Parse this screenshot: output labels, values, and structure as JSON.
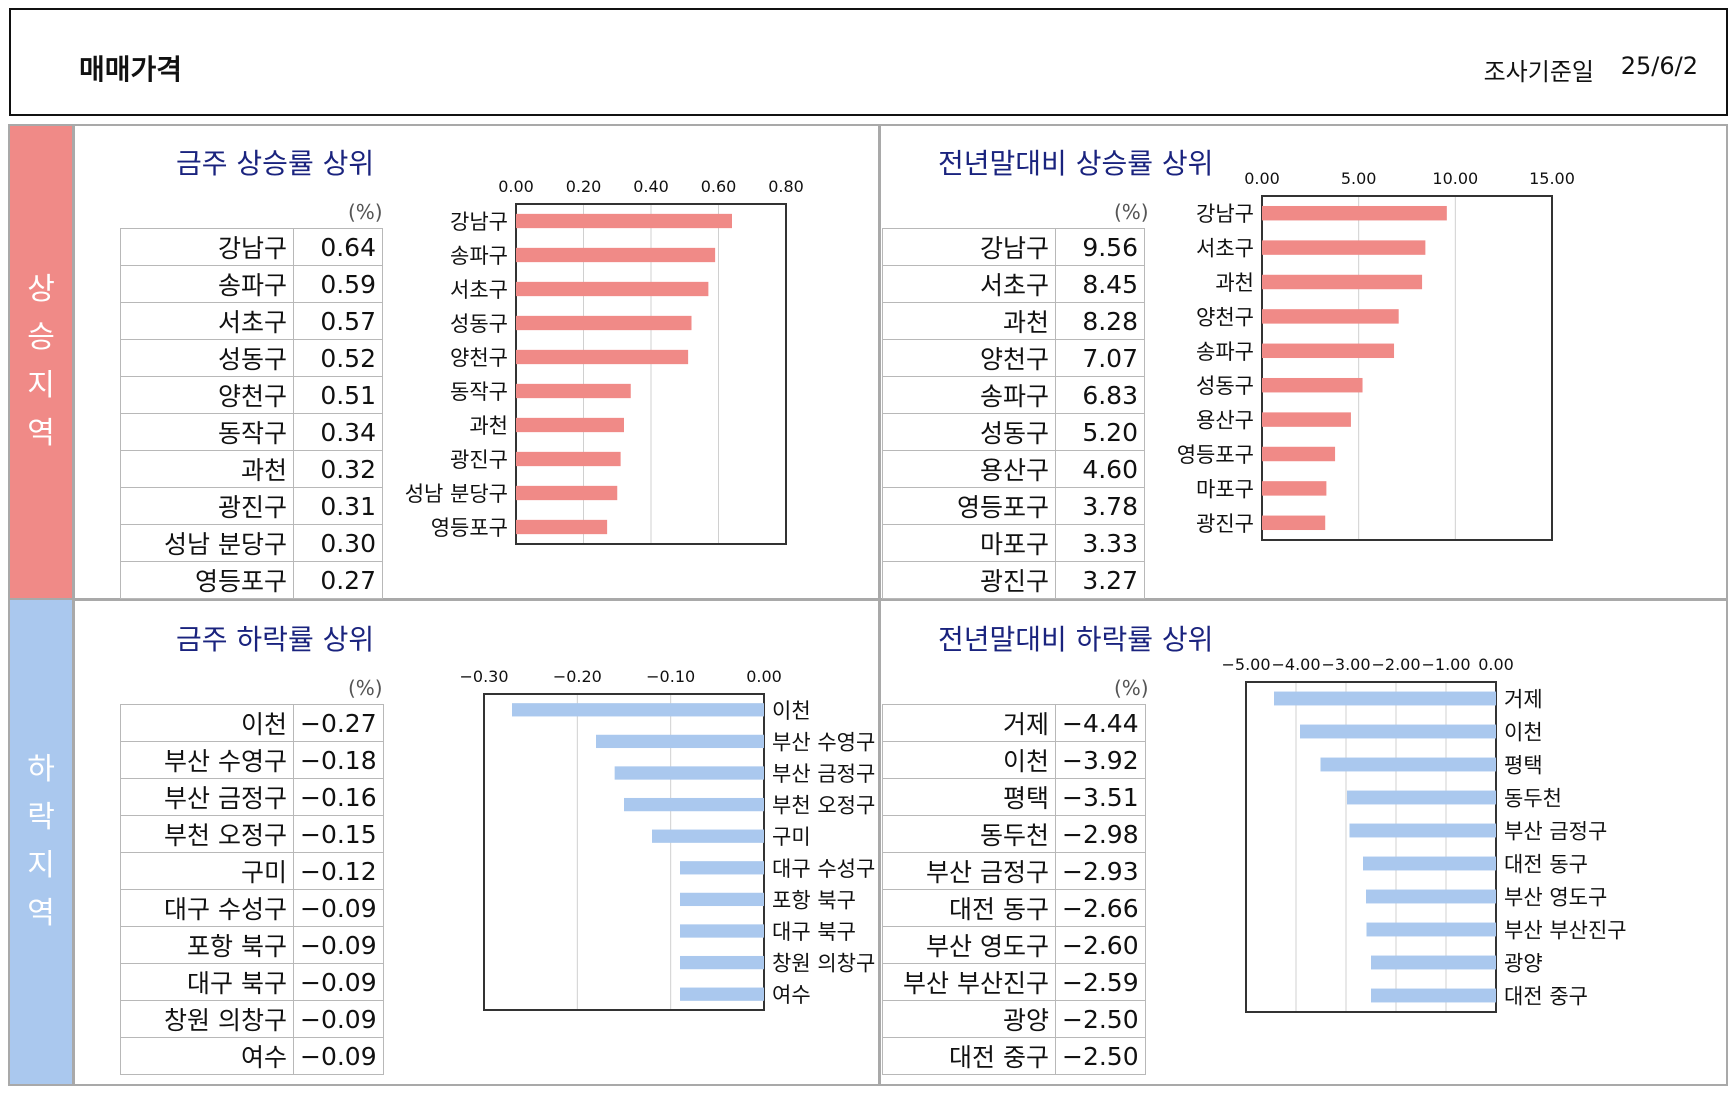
{
  "header": {
    "title": "매매가격",
    "date_label": "조사기준일",
    "date_value": "25/6/2"
  },
  "side": {
    "up": [
      "상",
      "승",
      "지",
      "역"
    ],
    "down": [
      "하",
      "락",
      "지",
      "역"
    ]
  },
  "unit_label": "(%)",
  "panels": {
    "weekly_up": {
      "title": "금주 상승률 상위",
      "rows": [
        {
          "name": "강남구",
          "value": "0.64"
        },
        {
          "name": "송파구",
          "value": "0.59"
        },
        {
          "name": "서초구",
          "value": "0.57"
        },
        {
          "name": "성동구",
          "value": "0.52"
        },
        {
          "name": "양천구",
          "value": "0.51"
        },
        {
          "name": "동작구",
          "value": "0.34"
        },
        {
          "name": "과천",
          "value": "0.32"
        },
        {
          "name": "광진구",
          "value": "0.31"
        },
        {
          "name": "성남 분당구",
          "value": "0.30"
        },
        {
          "name": "영등포구",
          "value": "0.27"
        }
      ]
    },
    "ytd_up": {
      "title": "전년말대비 상승률 상위",
      "rows": [
        {
          "name": "강남구",
          "value": "9.56"
        },
        {
          "name": "서초구",
          "value": "8.45"
        },
        {
          "name": "과천",
          "value": "8.28"
        },
        {
          "name": "양천구",
          "value": "7.07"
        },
        {
          "name": "송파구",
          "value": "6.83"
        },
        {
          "name": "성동구",
          "value": "5.20"
        },
        {
          "name": "용산구",
          "value": "4.60"
        },
        {
          "name": "영등포구",
          "value": "3.78"
        },
        {
          "name": "마포구",
          "value": "3.33"
        },
        {
          "name": "광진구",
          "value": "3.27"
        }
      ]
    },
    "weekly_down": {
      "title": "금주 하락률 상위",
      "rows": [
        {
          "name": "이천",
          "value": "−0.27"
        },
        {
          "name": "부산 수영구",
          "value": "−0.18"
        },
        {
          "name": "부산 금정구",
          "value": "−0.16"
        },
        {
          "name": "부천 오정구",
          "value": "−0.15"
        },
        {
          "name": "구미",
          "value": "−0.12"
        },
        {
          "name": "대구 수성구",
          "value": "−0.09"
        },
        {
          "name": "포항 북구",
          "value": "−0.09"
        },
        {
          "name": "대구 북구",
          "value": "−0.09"
        },
        {
          "name": "창원 의창구",
          "value": "−0.09"
        },
        {
          "name": "여수",
          "value": "−0.09"
        }
      ]
    },
    "ytd_down": {
      "title": "전년말대비 하락률 상위",
      "rows": [
        {
          "name": "거제",
          "value": "−4.44"
        },
        {
          "name": "이천",
          "value": "−3.92"
        },
        {
          "name": "평택",
          "value": "−3.51"
        },
        {
          "name": "동두천",
          "value": "−2.98"
        },
        {
          "name": "부산 금정구",
          "value": "−2.93"
        },
        {
          "name": "대전 동구",
          "value": "−2.66"
        },
        {
          "name": "부산 영도구",
          "value": "−2.60"
        },
        {
          "name": "부산 부산진구",
          "value": "−2.59"
        },
        {
          "name": "광양",
          "value": "−2.50"
        },
        {
          "name": "대전 중구",
          "value": "−2.50"
        }
      ]
    }
  },
  "chart_data": [
    {
      "type": "bar",
      "title": "금주 상승률 상위",
      "orientation": "horizontal",
      "categories": [
        "강남구",
        "송파구",
        "서초구",
        "성동구",
        "양천구",
        "동작구",
        "과천",
        "광진구",
        "성남 분당구",
        "영등포구"
      ],
      "values": [
        0.64,
        0.59,
        0.57,
        0.52,
        0.51,
        0.34,
        0.32,
        0.31,
        0.3,
        0.27
      ],
      "ticks": [
        "0.00",
        "0.20",
        "0.40",
        "0.60",
        "0.80"
      ],
      "xlim": [
        0,
        0.8
      ],
      "color": "#f08a87",
      "grid": true
    },
    {
      "type": "bar",
      "title": "전년말대비 상승률 상위",
      "orientation": "horizontal",
      "categories": [
        "강남구",
        "서초구",
        "과천",
        "양천구",
        "송파구",
        "성동구",
        "용산구",
        "영등포구",
        "마포구",
        "광진구"
      ],
      "values": [
        9.56,
        8.45,
        8.28,
        7.07,
        6.83,
        5.2,
        4.6,
        3.78,
        3.33,
        3.27
      ],
      "ticks": [
        "0.00",
        "5.00",
        "10.00",
        "15.00"
      ],
      "xlim": [
        0,
        15
      ],
      "color": "#f08a87",
      "grid": true
    },
    {
      "type": "bar",
      "title": "금주 하락률 상위",
      "orientation": "horizontal",
      "categories": [
        "이천",
        "부산 수영구",
        "부산 금정구",
        "부천 오정구",
        "구미",
        "대구 수성구",
        "포항 북구",
        "대구 북구",
        "창원 의창구",
        "여수"
      ],
      "values": [
        -0.27,
        -0.18,
        -0.16,
        -0.15,
        -0.12,
        -0.09,
        -0.09,
        -0.09,
        -0.09,
        -0.09
      ],
      "ticks": [
        "−0.30",
        "−0.20",
        "−0.10",
        "0.00"
      ],
      "xlim": [
        -0.3,
        0
      ],
      "color": "#aac8ee",
      "grid": true
    },
    {
      "type": "bar",
      "title": "전년말대비 하락률 상위",
      "orientation": "horizontal",
      "categories": [
        "거제",
        "이천",
        "평택",
        "동두천",
        "부산 금정구",
        "대전 동구",
        "부산 영도구",
        "부산 부산진구",
        "광양",
        "대전 중구"
      ],
      "values": [
        -4.44,
        -3.92,
        -3.51,
        -2.98,
        -2.93,
        -2.66,
        -2.6,
        -2.59,
        -2.5,
        -2.5
      ],
      "ticks": [
        "−5.00",
        "−4.00",
        "−3.00",
        "−2.00",
        "−1.00",
        "0.00"
      ],
      "xlim": [
        -5,
        0
      ],
      "color": "#aac8ee",
      "grid": true
    }
  ]
}
